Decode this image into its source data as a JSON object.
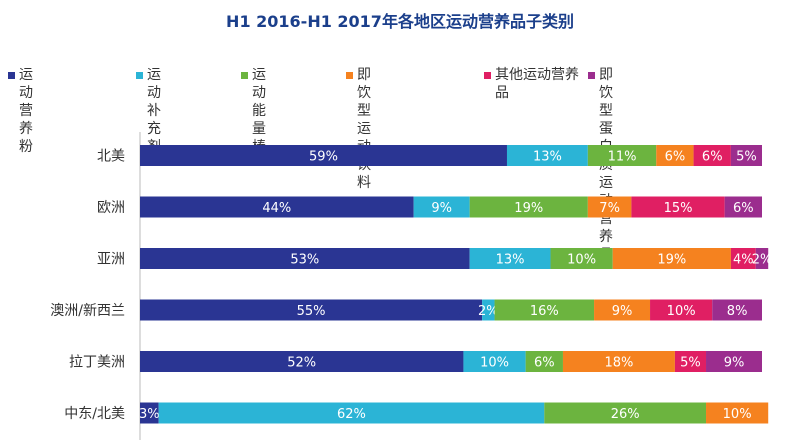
{
  "title": "H1 2016-H1 2017年各地区运动营养品子类别",
  "legend": [
    {
      "label": "运动营养粉",
      "color": "#2a3593"
    },
    {
      "label": "运动补充剂",
      "color": "#2bb4d6"
    },
    {
      "label": "运动能量棒",
      "color": "#6cb43f"
    },
    {
      "label": "即饮型运动饮料",
      "color": "#f5821f"
    },
    {
      "label": "其他运动营养品",
      "color": "#e01f63"
    },
    {
      "label": "即饮型蛋白质运动营养品",
      "color": "#9b2d8e"
    }
  ],
  "chart_data": {
    "type": "bar",
    "orientation": "horizontal",
    "stacked": true,
    "title": "H1 2016-H1 2017年各地区运动营养品子类别",
    "categories": [
      "北美",
      "欧洲",
      "亚洲",
      "澳洲/新西兰",
      "拉丁美洲",
      "中东/北美"
    ],
    "series": [
      {
        "name": "运动营养粉",
        "values": [
          59,
          44,
          53,
          55,
          52,
          3
        ]
      },
      {
        "name": "运动补充剂",
        "values": [
          13,
          9,
          13,
          2,
          10,
          62
        ]
      },
      {
        "name": "运动能量棒",
        "values": [
          11,
          19,
          10,
          16,
          6,
          26
        ]
      },
      {
        "name": "即饮型运动饮料",
        "values": [
          6,
          7,
          19,
          9,
          18,
          10
        ]
      },
      {
        "name": "其他运动营养品",
        "values": [
          6,
          15,
          4,
          10,
          5,
          0
        ]
      },
      {
        "name": "即饮型蛋白质运动营养品",
        "values": [
          5,
          6,
          2,
          8,
          9,
          0
        ]
      }
    ],
    "value_suffix": "%",
    "xlim": [
      0,
      100
    ],
    "legend_position": "top"
  }
}
